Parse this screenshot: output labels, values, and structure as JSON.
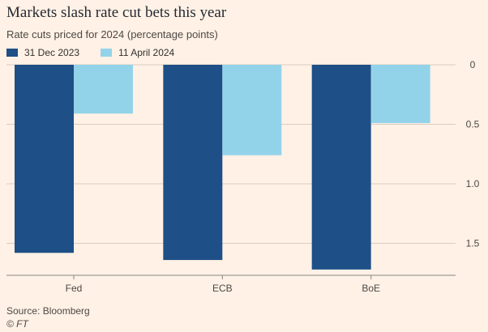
{
  "title": "Markets slash rate cut bets this year",
  "subtitle": "Rate cuts priced for 2024 (percentage points)",
  "source": "Source: Bloomberg",
  "credit": "© FT",
  "colors": {
    "series_1": "#1e4f87",
    "series_2": "#93d3ea",
    "grid": "#d9ccc0",
    "axis_text": "#4d4845",
    "background": "#fff1e5"
  },
  "chart_data": {
    "type": "bar",
    "orientation": "vertical, inverted y-axis (0 at top)",
    "categories": [
      "Fed",
      "ECB",
      "BoE"
    ],
    "series": [
      {
        "name": "31 Dec 2023",
        "values": [
          1.58,
          1.64,
          1.72
        ]
      },
      {
        "name": "11 April 2024",
        "values": [
          0.41,
          0.76,
          0.49
        ]
      }
    ],
    "yticks": [
      "0",
      "0.5",
      "1.0",
      "1.5"
    ],
    "ytick_values": [
      0,
      0.5,
      1.0,
      1.5
    ],
    "ylim": [
      0,
      1.72
    ],
    "y_axis_position": "right",
    "grid": true,
    "legend": "top-left"
  }
}
